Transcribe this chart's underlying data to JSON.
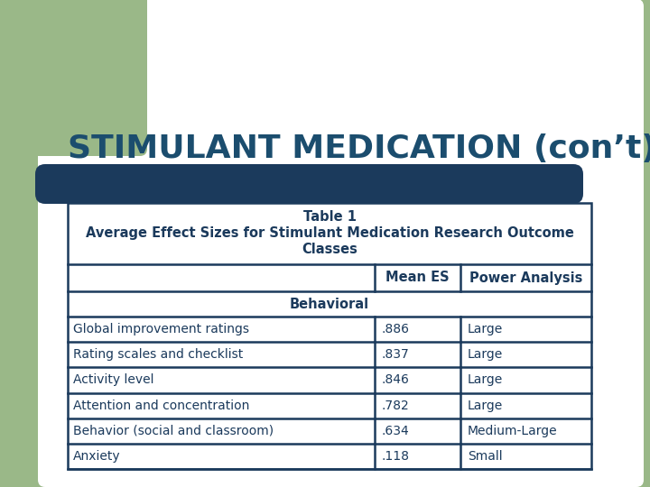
{
  "title": "STIMULANT MEDICATION (con’t)",
  "title_color": "#1b4d6e",
  "bg_color": "#9ab888",
  "white_bg": "#ffffff",
  "bar_color": "#1b3a5c",
  "col_headers": [
    "",
    "Mean ES",
    "Power Analysis"
  ],
  "section_header": "Behavioral",
  "table_title_1": "Table 1",
  "table_title_2": "Average Effect Sizes for Stimulant Medication Research Outcome",
  "table_title_3": "Classes",
  "rows": [
    [
      "Global improvement ratings",
      ".886",
      "Large"
    ],
    [
      "Rating scales and checklist",
      ".837",
      "Large"
    ],
    [
      "Activity level",
      ".846",
      "Large"
    ],
    [
      "Attention and concentration",
      ".782",
      "Large"
    ],
    [
      "Behavior (social and classroom)",
      ".634",
      "Medium-Large"
    ],
    [
      "Anxiety",
      ".118",
      "Small"
    ]
  ],
  "table_border_color": "#1b3a5c",
  "table_text_color": "#1b3a5c",
  "title_fontsize": 26,
  "table_header_fontsize": 10.5,
  "table_data_fontsize": 10
}
